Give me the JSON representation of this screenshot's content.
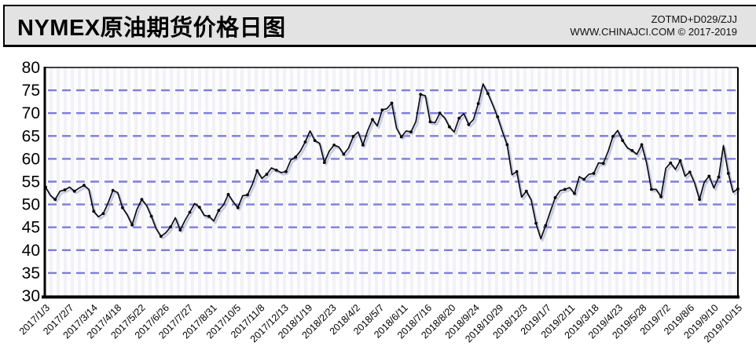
{
  "header": {
    "title": "NYMEX原油期货价格日图",
    "code": "ZOTMD+D029/ZJJ",
    "site": "WWW.CHINAJCI.COM © 2017-2019"
  },
  "chart_data": {
    "type": "line",
    "title": "NYMEX原油期货价格日图",
    "xlabel": "",
    "ylabel": "",
    "ylim": [
      30,
      80
    ],
    "y_ticks": [
      30,
      35,
      40,
      45,
      50,
      55,
      60,
      65,
      70,
      75,
      80
    ],
    "grid": "horizontal-dashed",
    "legend": "none",
    "x_tick_labels": [
      "2017/1/3",
      "2017/2/7",
      "2017/3/14",
      "2017/4/18",
      "2017/5/22",
      "2017/6/26",
      "2017/7/27",
      "2017/8/31",
      "2017/10/5",
      "2017/11/8",
      "2017/12/13",
      "2018/1/19",
      "2018/2/23",
      "2018/4/2",
      "2018/5/7",
      "2018/6/11",
      "2018/7/16",
      "2018/8/20",
      "2018/9/24",
      "2018/10/29",
      "2018/12/3",
      "2019/1/7",
      "2019/2/11",
      "2019/3/18",
      "2019/4/23",
      "2019/5/28",
      "2019/7/2",
      "2019/8/6",
      "2019/9/10",
      "2019/10/15"
    ],
    "values": [
      53.8,
      52.0,
      51.1,
      52.9,
      53.2,
      53.8,
      52.9,
      53.6,
      54.2,
      53.3,
      48.5,
      47.3,
      48.0,
      50.3,
      53.1,
      52.6,
      49.3,
      47.7,
      45.5,
      48.9,
      51.1,
      49.8,
      47.4,
      44.7,
      43.0,
      43.8,
      45.1,
      47.1,
      44.4,
      46.5,
      48.3,
      50.2,
      49.4,
      47.6,
      47.4,
      46.4,
      48.7,
      49.9,
      52.2,
      50.6,
      49.3,
      51.9,
      52.1,
      54.4,
      57.4,
      55.7,
      56.6,
      58.0,
      57.5,
      57.0,
      57.2,
      59.7,
      60.4,
      61.7,
      63.7,
      66.1,
      64.0,
      63.4,
      59.2,
      61.7,
      63.0,
      62.6,
      61.0,
      62.3,
      64.9,
      65.9,
      63.0,
      66.2,
      68.6,
      67.2,
      70.7,
      71.0,
      72.2,
      66.7,
      64.8,
      66.1,
      65.9,
      68.1,
      74.1,
      73.8,
      68.1,
      67.9,
      70.0,
      69.0,
      67.0,
      65.9,
      68.9,
      69.9,
      67.5,
      68.6,
      72.1,
      76.4,
      74.3,
      71.8,
      69.2,
      66.0,
      63.1,
      56.5,
      57.2,
      51.6,
      52.9,
      51.0,
      45.9,
      42.5,
      45.4,
      48.5,
      51.5,
      53.0,
      53.3,
      53.7,
      52.4,
      56.1,
      55.5,
      56.6,
      56.8,
      59.1,
      59.0,
      61.6,
      64.9,
      66.2,
      64.0,
      62.4,
      61.8,
      61.0,
      63.1,
      59.1,
      53.3,
      53.3,
      51.7,
      57.9,
      59.1,
      57.7,
      59.6,
      56.2,
      57.1,
      54.7,
      51.1,
      54.9,
      56.2,
      53.6,
      56.0,
      62.9,
      56.8,
      52.7,
      53.4
    ],
    "marker_every": 2,
    "colors": {
      "grid": "#7e7ed6",
      "line": "#0c0c12",
      "marker": "#000000",
      "shadow": "#959ec8",
      "plot_bg": "#fdfdff",
      "plot_bg_stripe": "#f2f2f6",
      "header_bg": "#e3e3e3",
      "frame": "#000000"
    }
  }
}
